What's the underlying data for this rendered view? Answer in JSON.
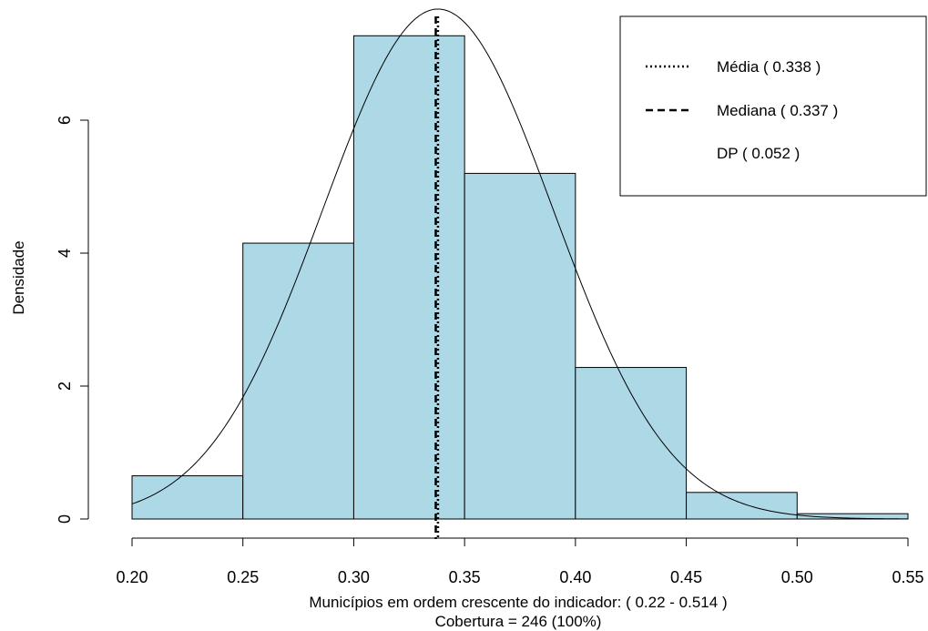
{
  "chart_data": {
    "type": "histogram",
    "bins": [
      {
        "start": 0.2,
        "end": 0.25,
        "density": 0.65
      },
      {
        "start": 0.25,
        "end": 0.3,
        "density": 4.15
      },
      {
        "start": 0.3,
        "end": 0.35,
        "density": 7.27
      },
      {
        "start": 0.35,
        "end": 0.4,
        "density": 5.2
      },
      {
        "start": 0.4,
        "end": 0.45,
        "density": 2.28
      },
      {
        "start": 0.45,
        "end": 0.5,
        "density": 0.4
      },
      {
        "start": 0.5,
        "end": 0.55,
        "density": 0.08
      }
    ],
    "normal_curve": {
      "mean": 0.338,
      "sd": 0.052
    },
    "mean_line": 0.338,
    "median_line": 0.337,
    "xlim": [
      0.2,
      0.55
    ],
    "ylim": [
      0,
      7.5
    ],
    "x_ticks": [
      "0.20",
      "0.25",
      "0.30",
      "0.35",
      "0.40",
      "0.45",
      "0.50",
      "0.55"
    ],
    "y_ticks": [
      "0",
      "2",
      "4",
      "6"
    ],
    "ylabel": "Densidade",
    "xlabel": "Municípios em ordem crescente do indicador: ( 0.22 - 0.514 )",
    "xlabel2": "Cobertura = 246 (100%)",
    "legend": {
      "position": "top-right",
      "entries": [
        {
          "label": "Média ( 0.338 )",
          "line": "dotted"
        },
        {
          "label": "Mediana ( 0.337 )",
          "line": "dashed"
        },
        {
          "label": "DP ( 0.052 )",
          "line": "none"
        }
      ]
    },
    "colors": {
      "bar_fill": "#add8e6",
      "stroke": "#000000"
    }
  }
}
